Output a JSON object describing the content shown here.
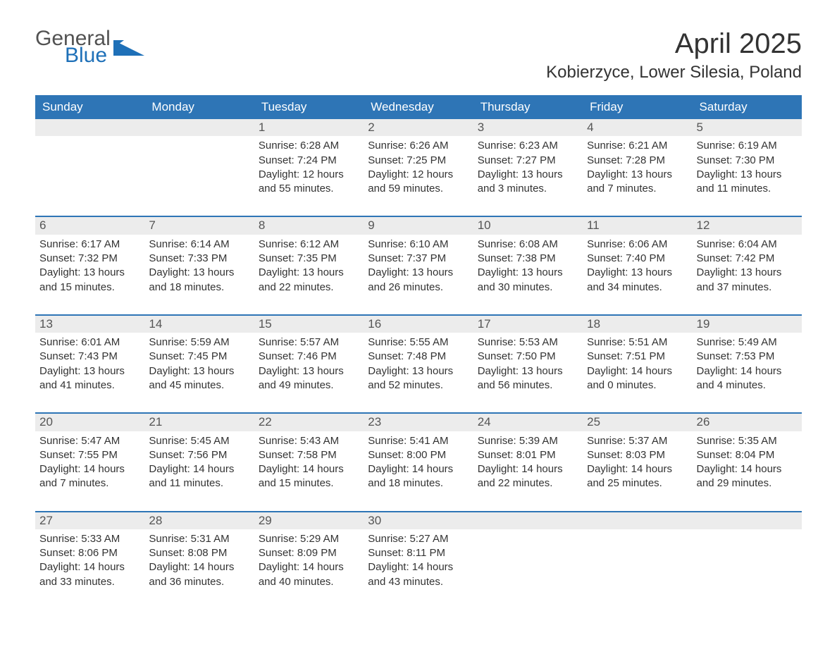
{
  "logo": {
    "general": "General",
    "blue": "Blue"
  },
  "title": "April 2025",
  "location": "Kobierzyce, Lower Silesia, Poland",
  "colors": {
    "header_bg": "#2e75b6",
    "header_text": "#ffffff",
    "row_separator": "#2e75b6",
    "daynum_bg": "#ececec",
    "logo_general": "#525252",
    "logo_blue": "#1e70b8",
    "body_text": "#333333",
    "background": "#ffffff"
  },
  "typography": {
    "title_fontsize": 40,
    "location_fontsize": 24,
    "header_fontsize": 17,
    "daynum_fontsize": 17,
    "body_fontsize": 15,
    "font_family": "Arial"
  },
  "columns": [
    "Sunday",
    "Monday",
    "Tuesday",
    "Wednesday",
    "Thursday",
    "Friday",
    "Saturday"
  ],
  "weeks": [
    [
      null,
      null,
      {
        "n": "1",
        "sunrise": "6:28 AM",
        "sunset": "7:24 PM",
        "dl1": "Daylight: 12 hours",
        "dl2": "and 55 minutes."
      },
      {
        "n": "2",
        "sunrise": "6:26 AM",
        "sunset": "7:25 PM",
        "dl1": "Daylight: 12 hours",
        "dl2": "and 59 minutes."
      },
      {
        "n": "3",
        "sunrise": "6:23 AM",
        "sunset": "7:27 PM",
        "dl1": "Daylight: 13 hours",
        "dl2": "and 3 minutes."
      },
      {
        "n": "4",
        "sunrise": "6:21 AM",
        "sunset": "7:28 PM",
        "dl1": "Daylight: 13 hours",
        "dl2": "and 7 minutes."
      },
      {
        "n": "5",
        "sunrise": "6:19 AM",
        "sunset": "7:30 PM",
        "dl1": "Daylight: 13 hours",
        "dl2": "and 11 minutes."
      }
    ],
    [
      {
        "n": "6",
        "sunrise": "6:17 AM",
        "sunset": "7:32 PM",
        "dl1": "Daylight: 13 hours",
        "dl2": "and 15 minutes."
      },
      {
        "n": "7",
        "sunrise": "6:14 AM",
        "sunset": "7:33 PM",
        "dl1": "Daylight: 13 hours",
        "dl2": "and 18 minutes."
      },
      {
        "n": "8",
        "sunrise": "6:12 AM",
        "sunset": "7:35 PM",
        "dl1": "Daylight: 13 hours",
        "dl2": "and 22 minutes."
      },
      {
        "n": "9",
        "sunrise": "6:10 AM",
        "sunset": "7:37 PM",
        "dl1": "Daylight: 13 hours",
        "dl2": "and 26 minutes."
      },
      {
        "n": "10",
        "sunrise": "6:08 AM",
        "sunset": "7:38 PM",
        "dl1": "Daylight: 13 hours",
        "dl2": "and 30 minutes."
      },
      {
        "n": "11",
        "sunrise": "6:06 AM",
        "sunset": "7:40 PM",
        "dl1": "Daylight: 13 hours",
        "dl2": "and 34 minutes."
      },
      {
        "n": "12",
        "sunrise": "6:04 AM",
        "sunset": "7:42 PM",
        "dl1": "Daylight: 13 hours",
        "dl2": "and 37 minutes."
      }
    ],
    [
      {
        "n": "13",
        "sunrise": "6:01 AM",
        "sunset": "7:43 PM",
        "dl1": "Daylight: 13 hours",
        "dl2": "and 41 minutes."
      },
      {
        "n": "14",
        "sunrise": "5:59 AM",
        "sunset": "7:45 PM",
        "dl1": "Daylight: 13 hours",
        "dl2": "and 45 minutes."
      },
      {
        "n": "15",
        "sunrise": "5:57 AM",
        "sunset": "7:46 PM",
        "dl1": "Daylight: 13 hours",
        "dl2": "and 49 minutes."
      },
      {
        "n": "16",
        "sunrise": "5:55 AM",
        "sunset": "7:48 PM",
        "dl1": "Daylight: 13 hours",
        "dl2": "and 52 minutes."
      },
      {
        "n": "17",
        "sunrise": "5:53 AM",
        "sunset": "7:50 PM",
        "dl1": "Daylight: 13 hours",
        "dl2": "and 56 minutes."
      },
      {
        "n": "18",
        "sunrise": "5:51 AM",
        "sunset": "7:51 PM",
        "dl1": "Daylight: 14 hours",
        "dl2": "and 0 minutes."
      },
      {
        "n": "19",
        "sunrise": "5:49 AM",
        "sunset": "7:53 PM",
        "dl1": "Daylight: 14 hours",
        "dl2": "and 4 minutes."
      }
    ],
    [
      {
        "n": "20",
        "sunrise": "5:47 AM",
        "sunset": "7:55 PM",
        "dl1": "Daylight: 14 hours",
        "dl2": "and 7 minutes."
      },
      {
        "n": "21",
        "sunrise": "5:45 AM",
        "sunset": "7:56 PM",
        "dl1": "Daylight: 14 hours",
        "dl2": "and 11 minutes."
      },
      {
        "n": "22",
        "sunrise": "5:43 AM",
        "sunset": "7:58 PM",
        "dl1": "Daylight: 14 hours",
        "dl2": "and 15 minutes."
      },
      {
        "n": "23",
        "sunrise": "5:41 AM",
        "sunset": "8:00 PM",
        "dl1": "Daylight: 14 hours",
        "dl2": "and 18 minutes."
      },
      {
        "n": "24",
        "sunrise": "5:39 AM",
        "sunset": "8:01 PM",
        "dl1": "Daylight: 14 hours",
        "dl2": "and 22 minutes."
      },
      {
        "n": "25",
        "sunrise": "5:37 AM",
        "sunset": "8:03 PM",
        "dl1": "Daylight: 14 hours",
        "dl2": "and 25 minutes."
      },
      {
        "n": "26",
        "sunrise": "5:35 AM",
        "sunset": "8:04 PM",
        "dl1": "Daylight: 14 hours",
        "dl2": "and 29 minutes."
      }
    ],
    [
      {
        "n": "27",
        "sunrise": "5:33 AM",
        "sunset": "8:06 PM",
        "dl1": "Daylight: 14 hours",
        "dl2": "and 33 minutes."
      },
      {
        "n": "28",
        "sunrise": "5:31 AM",
        "sunset": "8:08 PM",
        "dl1": "Daylight: 14 hours",
        "dl2": "and 36 minutes."
      },
      {
        "n": "29",
        "sunrise": "5:29 AM",
        "sunset": "8:09 PM",
        "dl1": "Daylight: 14 hours",
        "dl2": "and 40 minutes."
      },
      {
        "n": "30",
        "sunrise": "5:27 AM",
        "sunset": "8:11 PM",
        "dl1": "Daylight: 14 hours",
        "dl2": "and 43 minutes."
      },
      null,
      null,
      null
    ]
  ]
}
